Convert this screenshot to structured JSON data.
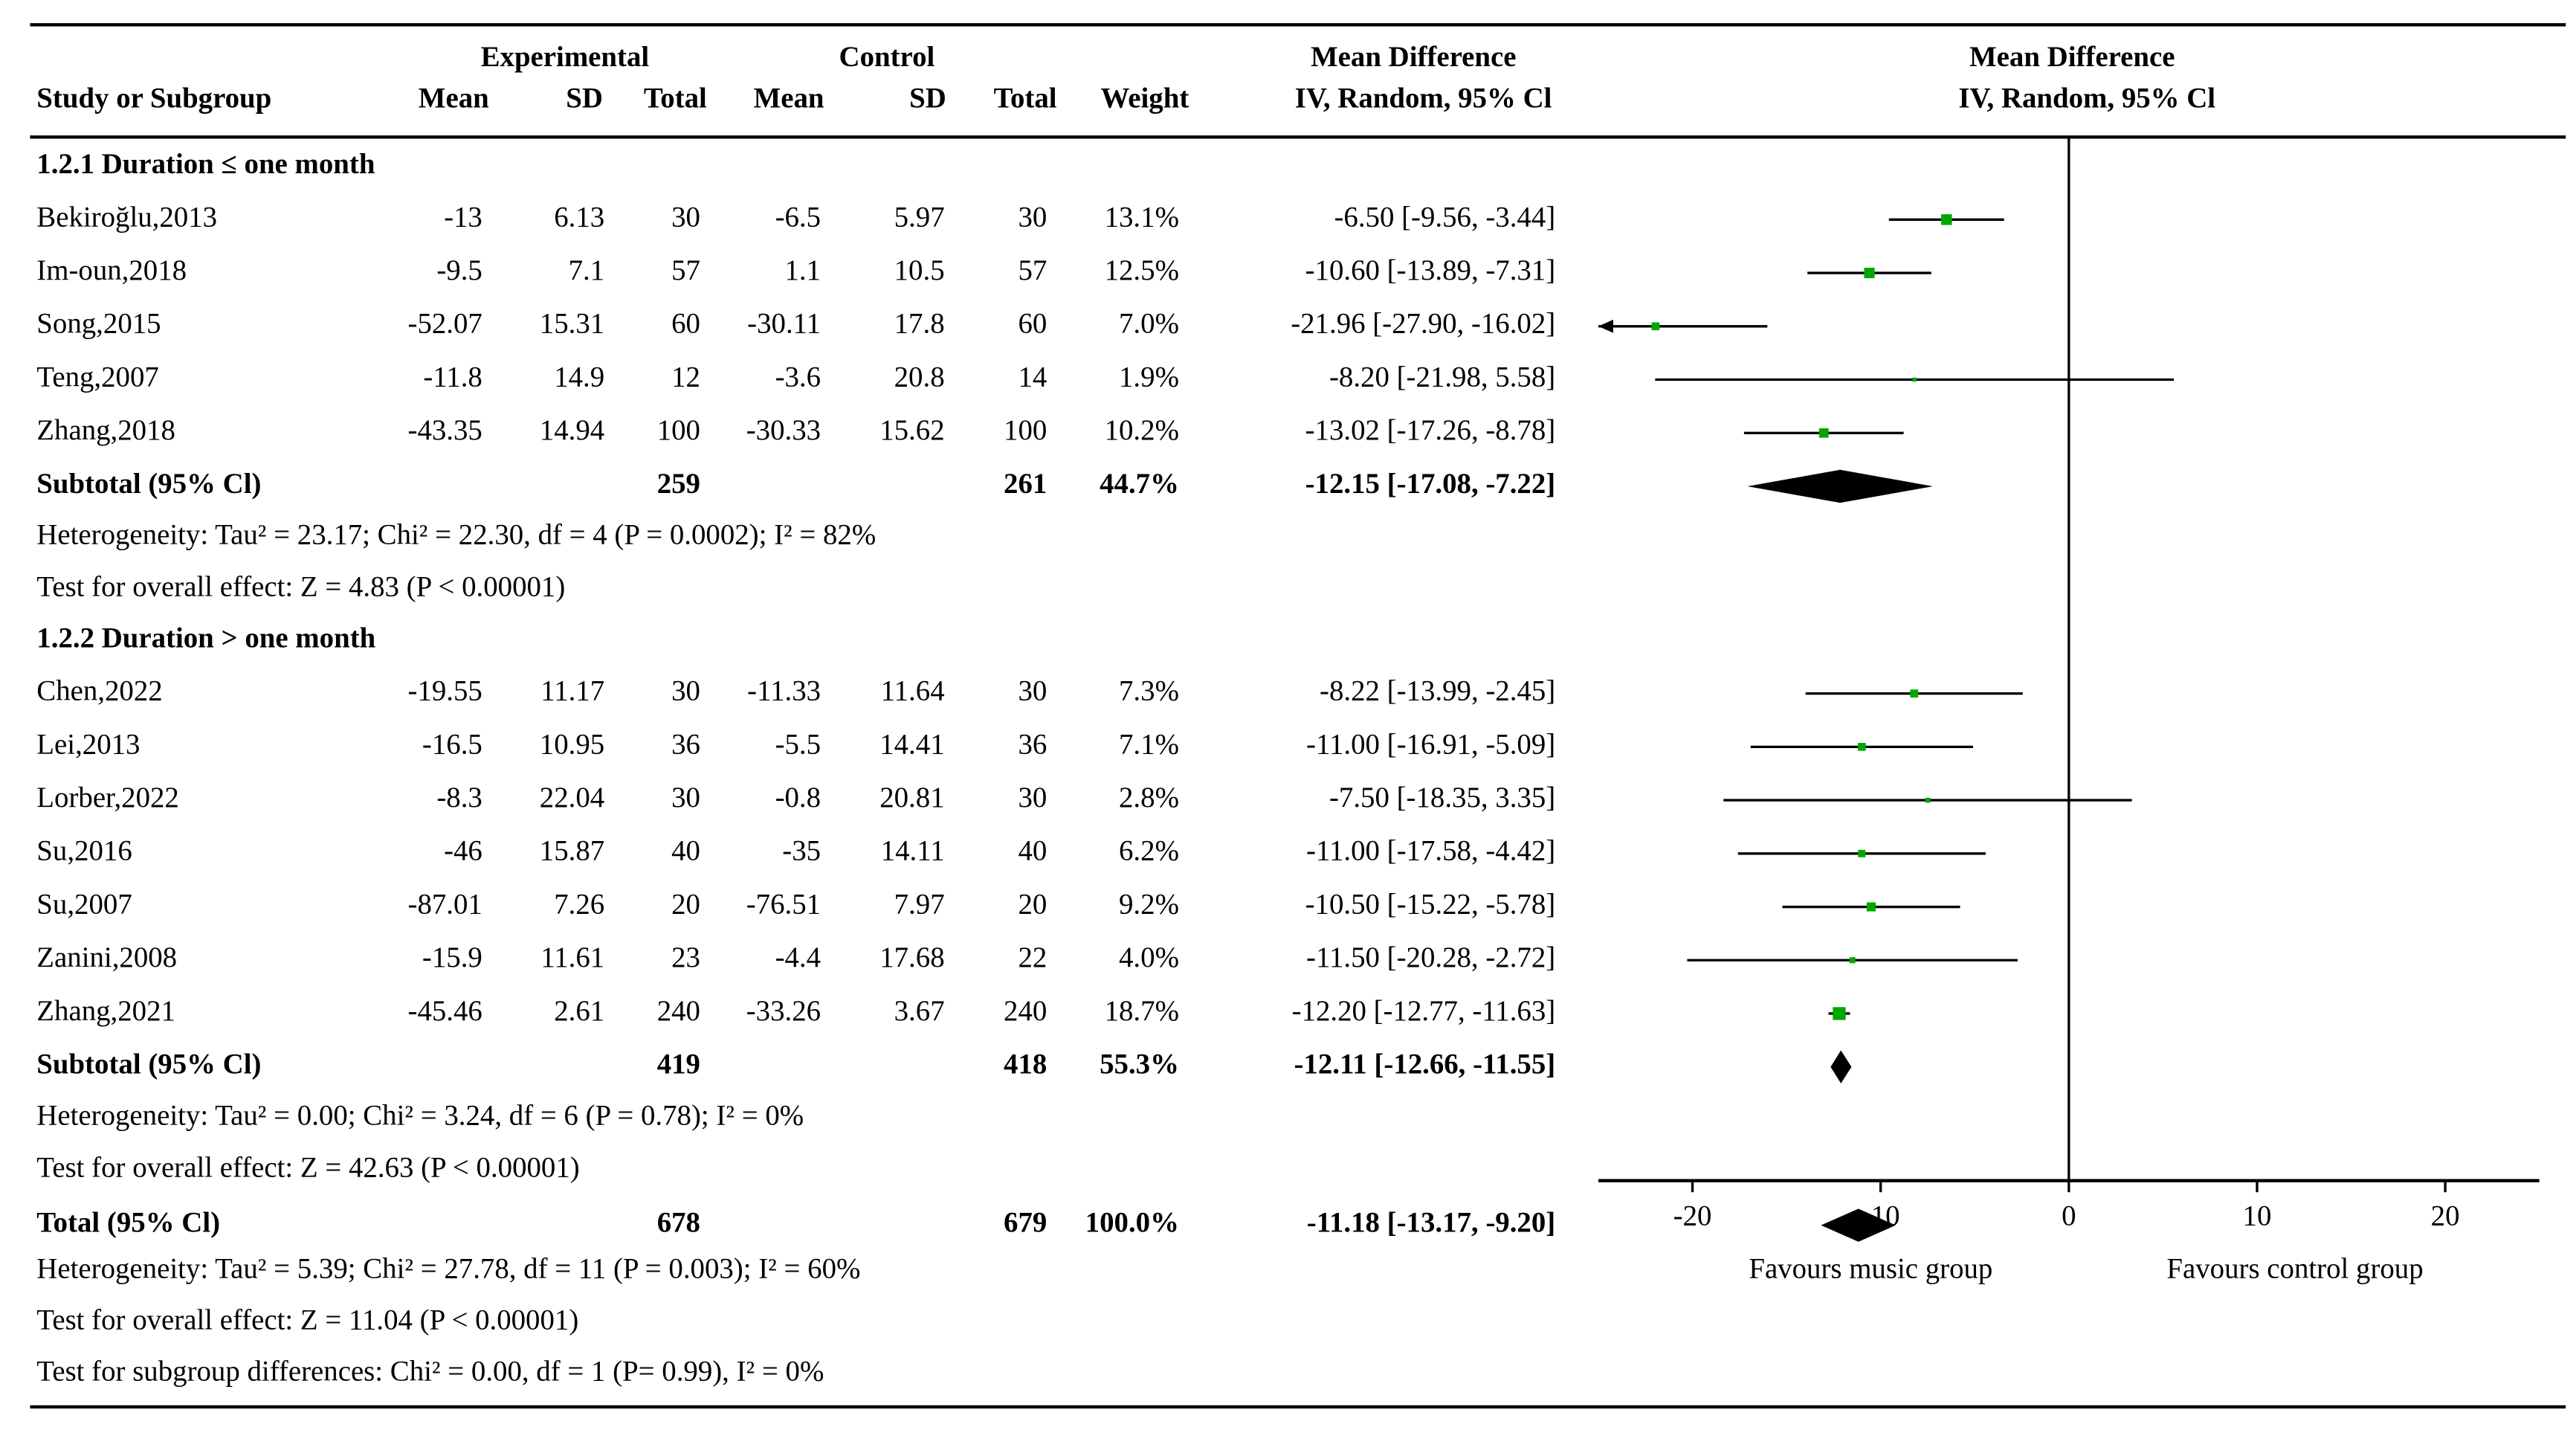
{
  "header": {
    "experimental": "Experimental",
    "control": "Control",
    "effect": "Mean Difference",
    "effect_method": "IV, Random, 95% Cl",
    "columns": [
      "Study or Subgroup",
      "Mean",
      "SD",
      "Total",
      "Mean",
      "SD",
      "Total",
      "Weight"
    ],
    "plot_title": "Mean Difference",
    "plot_method": "IV, Random, 95% Cl"
  },
  "chart_data": {
    "type": "forest",
    "xlim": [
      -25,
      25
    ],
    "xticks": [
      -20,
      -10,
      0,
      10,
      20
    ],
    "marker_color": "#00a800",
    "favours_left": "Favours music group",
    "favours_right": "Favours control group",
    "groups": [
      {
        "title": "1.2.1 Duration ≤ one month",
        "studies": [
          {
            "study": "Bekiroğlu,2013",
            "exp_mean": -13,
            "exp_sd": 6.13,
            "exp_total": 30,
            "ctl_mean": -6.5,
            "ctl_sd": 5.97,
            "ctl_total": 30,
            "weight": 13.1,
            "weight_label": "13.1%",
            "md": -6.5,
            "ci_low": -9.56,
            "ci_high": -3.44,
            "value_label": "-6.50 [-9.56, -3.44]"
          },
          {
            "study": "Im-oun,2018",
            "exp_mean": -9.5,
            "exp_sd": 7.1,
            "exp_total": 57,
            "ctl_mean": 1.1,
            "ctl_sd": 10.5,
            "ctl_total": 57,
            "weight": 12.5,
            "weight_label": "12.5%",
            "md": -10.6,
            "ci_low": -13.89,
            "ci_high": -7.31,
            "value_label": "-10.60 [-13.89, -7.31]"
          },
          {
            "study": "Song,2015",
            "exp_mean": -52.07,
            "exp_sd": 15.31,
            "exp_total": 60,
            "ctl_mean": -30.11,
            "ctl_sd": 17.8,
            "ctl_total": 60,
            "weight": 7.0,
            "weight_label": "7.0%",
            "md": -21.96,
            "ci_low": -27.9,
            "ci_high": -16.02,
            "value_label": "-21.96 [-27.90, -16.02]"
          },
          {
            "study": "Teng,2007",
            "exp_mean": -11.8,
            "exp_sd": 14.9,
            "exp_total": 12,
            "ctl_mean": -3.6,
            "ctl_sd": 20.8,
            "ctl_total": 14,
            "weight": 1.9,
            "weight_label": "1.9%",
            "md": -8.2,
            "ci_low": -21.98,
            "ci_high": 5.58,
            "value_label": "-8.20 [-21.98, 5.58]"
          },
          {
            "study": "Zhang,2018",
            "exp_mean": -43.35,
            "exp_sd": 14.94,
            "exp_total": 100,
            "ctl_mean": -30.33,
            "ctl_sd": 15.62,
            "ctl_total": 100,
            "weight": 10.2,
            "weight_label": "10.2%",
            "md": -13.02,
            "ci_low": -17.26,
            "ci_high": -8.78,
            "value_label": "-13.02 [-17.26, -8.78]"
          }
        ],
        "subtotal": {
          "label": "Subtotal (95% Cl)",
          "exp_total": 259,
          "ctl_total": 261,
          "weight": 44.7,
          "weight_label": "44.7%",
          "md": -12.15,
          "ci_low": -17.08,
          "ci_high": -7.22,
          "value_label": "-12.15 [-17.08, -7.22]"
        },
        "heterogeneity": "Heterogeneity: Tau² = 23.17; Chi² = 22.30, df = 4 (P = 0.0002); I² = 82%",
        "overall_effect": "Test for overall effect: Z = 4.83 (P < 0.00001)"
      },
      {
        "title": "1.2.2 Duration > one month",
        "studies": [
          {
            "study": "Chen,2022",
            "exp_mean": -19.55,
            "exp_sd": 11.17,
            "exp_total": 30,
            "ctl_mean": -11.33,
            "ctl_sd": 11.64,
            "ctl_total": 30,
            "weight": 7.3,
            "weight_label": "7.3%",
            "md": -8.22,
            "ci_low": -13.99,
            "ci_high": -2.45,
            "value_label": "-8.22 [-13.99, -2.45]"
          },
          {
            "study": "Lei,2013",
            "exp_mean": -16.5,
            "exp_sd": 10.95,
            "exp_total": 36,
            "ctl_mean": -5.5,
            "ctl_sd": 14.41,
            "ctl_total": 36,
            "weight": 7.1,
            "weight_label": "7.1%",
            "md": -11,
            "ci_low": -16.91,
            "ci_high": -5.09,
            "value_label": "-11.00 [-16.91, -5.09]"
          },
          {
            "study": "Lorber,2022",
            "exp_mean": -8.3,
            "exp_sd": 22.04,
            "exp_total": 30,
            "ctl_mean": -0.8,
            "ctl_sd": 20.81,
            "ctl_total": 30,
            "weight": 2.8,
            "weight_label": "2.8%",
            "md": -7.5,
            "ci_low": -18.35,
            "ci_high": 3.35,
            "value_label": "-7.50 [-18.35, 3.35]"
          },
          {
            "study": "Su,2016",
            "exp_mean": -46,
            "exp_sd": 15.87,
            "exp_total": 40,
            "ctl_mean": -35,
            "ctl_sd": 14.11,
            "ctl_total": 40,
            "weight": 6.2,
            "weight_label": "6.2%",
            "md": -11,
            "ci_low": -17.58,
            "ci_high": -4.42,
            "value_label": "-11.00 [-17.58, -4.42]"
          },
          {
            "study": "Su,2007",
            "exp_mean": -87.01,
            "exp_sd": 7.26,
            "exp_total": 20,
            "ctl_mean": -76.51,
            "ctl_sd": 7.97,
            "ctl_total": 20,
            "weight": 9.2,
            "weight_label": "9.2%",
            "md": -10.5,
            "ci_low": -15.22,
            "ci_high": -5.78,
            "value_label": "-10.50 [-15.22, -5.78]"
          },
          {
            "study": "Zanini,2008",
            "exp_mean": -15.9,
            "exp_sd": 11.61,
            "exp_total": 23,
            "ctl_mean": -4.4,
            "ctl_sd": 17.68,
            "ctl_total": 22,
            "weight": 4.0,
            "weight_label": "4.0%",
            "md": -11.5,
            "ci_low": -20.28,
            "ci_high": -2.72,
            "value_label": "-11.50 [-20.28, -2.72]"
          },
          {
            "study": "Zhang,2021",
            "exp_mean": -45.46,
            "exp_sd": 2.61,
            "exp_total": 240,
            "ctl_mean": -33.26,
            "ctl_sd": 3.67,
            "ctl_total": 240,
            "weight": 18.7,
            "weight_label": "18.7%",
            "md": -12.2,
            "ci_low": -12.77,
            "ci_high": -11.63,
            "value_label": "-12.20 [-12.77, -11.63]"
          }
        ],
        "subtotal": {
          "label": "Subtotal (95% Cl)",
          "exp_total": 419,
          "ctl_total": 418,
          "weight": 55.3,
          "weight_label": "55.3%",
          "md": -12.11,
          "ci_low": -12.66,
          "ci_high": -11.55,
          "value_label": "-12.11 [-12.66, -11.55]"
        },
        "heterogeneity": "Heterogeneity: Tau² = 0.00; Chi² = 3.24, df = 6 (P = 0.78); I² = 0%",
        "overall_effect": "Test for overall effect: Z = 42.63 (P < 0.00001)"
      }
    ],
    "total": {
      "label": "Total (95% Cl)",
      "exp_total": 678,
      "ctl_total": 679,
      "weight": 100.0,
      "weight_label": "100.0%",
      "md": -11.18,
      "ci_low": -13.17,
      "ci_high": -9.2,
      "value_label": "-11.18 [-13.17, -9.20]"
    },
    "total_heterogeneity": "Heterogeneity: Tau² = 5.39; Chi² = 27.78, df = 11 (P = 0.003); I² = 60%",
    "total_overall_effect": "Test for overall effect: Z = 11.04 (P < 0.00001)",
    "subgroup_differences": "Test for subgroup differences: Chi² = 0.00, df = 1 (P= 0.99), I² = 0%"
  }
}
